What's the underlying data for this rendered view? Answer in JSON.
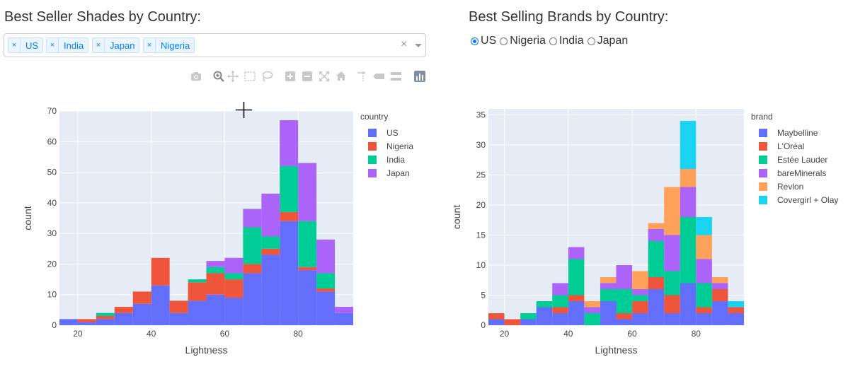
{
  "left": {
    "title": "Best Seller Shades by Country:",
    "selected_countries": [
      "US",
      "India",
      "Japan",
      "Nigeria"
    ],
    "chip_remove_glyph": "×",
    "clear_glyph": "×"
  },
  "right": {
    "title": "Best Selling Brands by Country:",
    "radio_options": [
      "US",
      "Nigeria",
      "India",
      "Japan"
    ],
    "radio_selected": "US"
  },
  "modebar_icons": [
    "camera-icon",
    "zoom-icon",
    "pan-icon",
    "box-select-icon",
    "lasso-icon",
    "zoom-in-icon",
    "zoom-out-icon",
    "autoscale-icon",
    "reset-axes-icon",
    "spike-lines-icon",
    "hover-closest-icon",
    "hover-compare-icon",
    "plotly-logo-icon"
  ],
  "chart_data": [
    {
      "type": "bar",
      "barmode": "stack",
      "xlabel": "Lightness",
      "ylabel": "count",
      "xlim": [
        15,
        95
      ],
      "ylim": [
        0,
        70
      ],
      "x_ticks": [
        20,
        40,
        60,
        80
      ],
      "y_ticks": [
        0,
        10,
        20,
        30,
        40,
        50,
        60,
        70
      ],
      "bin_start": 15,
      "bin_width": 5,
      "legend_title": "country",
      "legend_position": "right",
      "series": [
        {
          "name": "US",
          "color": "#636efa",
          "values": [
            2,
            1,
            2,
            4,
            7,
            13,
            4,
            8,
            10,
            9,
            17,
            23,
            34,
            18,
            11,
            4
          ]
        },
        {
          "name": "Nigeria",
          "color": "#ef553b",
          "values": [
            0,
            1,
            1,
            2,
            4,
            9,
            4,
            6,
            7,
            6,
            3,
            2,
            3,
            1,
            1,
            0
          ]
        },
        {
          "name": "India",
          "color": "#00cc96",
          "values": [
            0,
            0,
            1,
            0,
            0,
            0,
            0,
            1,
            2,
            2,
            12,
            4,
            15,
            15,
            5,
            0
          ]
        },
        {
          "name": "Japan",
          "color": "#ab63fa",
          "values": [
            0,
            0,
            0,
            0,
            0,
            0,
            0,
            0,
            2,
            5,
            6,
            14,
            15,
            19,
            11,
            2
          ]
        }
      ]
    },
    {
      "type": "bar",
      "barmode": "stack",
      "xlabel": "Lightness",
      "ylabel": "count",
      "xlim": [
        15,
        95
      ],
      "ylim": [
        0,
        36
      ],
      "x_ticks": [
        20,
        40,
        60,
        80
      ],
      "y_ticks": [
        0,
        5,
        10,
        15,
        20,
        25,
        30,
        35
      ],
      "bin_start": 15,
      "bin_width": 5,
      "legend_title": "brand",
      "legend_position": "right",
      "series": [
        {
          "name": "Maybelline",
          "color": "#636efa",
          "values": [
            1,
            0,
            1,
            3,
            2,
            4,
            0,
            4,
            1,
            2,
            6,
            2,
            7,
            2,
            4,
            2
          ]
        },
        {
          "name": "L'Oréal",
          "color": "#ef553b",
          "values": [
            1,
            1,
            0,
            0,
            1,
            1,
            0,
            0,
            1,
            2,
            2,
            3,
            0,
            1,
            2,
            1
          ]
        },
        {
          "name": "Estée Lauder",
          "color": "#00cc96",
          "values": [
            0,
            0,
            1,
            1,
            2,
            6,
            2,
            2,
            4,
            1,
            6,
            4,
            11,
            4,
            0,
            0
          ]
        },
        {
          "name": "bareMinerals",
          "color": "#ab63fa",
          "values": [
            0,
            0,
            0,
            0,
            2,
            2,
            1,
            1,
            4,
            1,
            2,
            6,
            5,
            4,
            1,
            0
          ]
        },
        {
          "name": "Revlon",
          "color": "#ffa15a",
          "values": [
            0,
            0,
            0,
            0,
            0,
            0,
            1,
            1,
            0,
            3,
            1,
            8,
            3,
            4,
            1,
            0
          ]
        },
        {
          "name": "Covergirl + Olay",
          "color": "#19d3f3",
          "values": [
            0,
            0,
            0,
            0,
            0,
            0,
            0,
            0,
            0,
            0,
            0,
            0,
            8,
            3,
            0,
            1
          ]
        }
      ]
    }
  ]
}
